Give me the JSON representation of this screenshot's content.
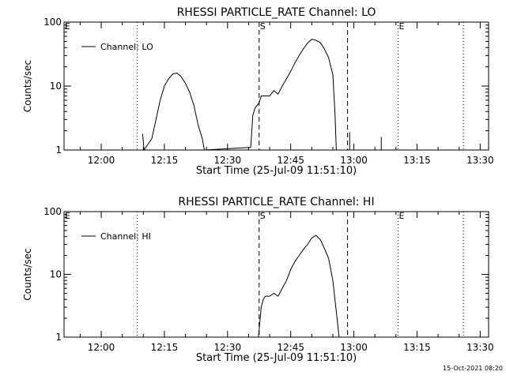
{
  "chart_data": [
    {
      "type": "line",
      "title": "RHESSI PARTICLE_RATE Channel: LO",
      "xlabel": "Start Time (25-Jul-09 11:51:10)",
      "ylabel": "Counts/sec",
      "yscale": "log",
      "xlim": [
        "11:51:10",
        "13:32:00"
      ],
      "ylim": [
        1,
        100
      ],
      "xticks": [
        "12:00",
        "12:15",
        "12:30",
        "12:45",
        "13:00",
        "13:15",
        "13:30"
      ],
      "yticks": [
        "1",
        "10",
        "100"
      ],
      "legend": {
        "placement": "top-left",
        "entries": [
          "Channel: LO"
        ]
      },
      "markers": [
        {
          "label": "E",
          "time": "11:51:10",
          "style": "none"
        },
        {
          "label": "",
          "time": "12:08:30",
          "style": "dotted"
        },
        {
          "label": "S",
          "time": "12:37:30",
          "style": "dashed"
        },
        {
          "label": "",
          "time": "12:58:30",
          "style": "dashed"
        },
        {
          "label": "E",
          "time": "13:10:30",
          "style": "dotted"
        },
        {
          "label": "",
          "time": "13:26:00",
          "style": "dotted"
        }
      ],
      "series": [
        {
          "name": "Channel: LO",
          "x": [
            "12:09:50",
            "12:10:10",
            "12:12:00",
            "12:13:00",
            "12:14:00",
            "12:15:00",
            "12:16:00",
            "12:17:00",
            "12:18:00",
            "12:19:00",
            "12:20:00",
            "12:21:00",
            "12:22:00",
            "12:23:00",
            "12:24:00",
            "12:24:30",
            "12:35:30",
            "12:36:00",
            "12:36:30",
            "12:37:00",
            "12:37:30",
            "12:38:00",
            "12:39:00",
            "12:40:00",
            "12:41:00",
            "12:42:00",
            "12:43:00",
            "12:44:00",
            "12:45:00",
            "12:46:00",
            "12:47:00",
            "12:48:00",
            "12:49:00",
            "12:50:00",
            "12:51:00",
            "12:52:00",
            "12:53:00",
            "12:54:00",
            "12:55:00",
            "12:55:30",
            "12:55:50"
          ],
          "y": [
            1.8,
            1.0,
            1.5,
            3,
            6,
            10,
            13,
            15.5,
            16,
            14,
            11,
            8,
            5,
            2.5,
            1.5,
            1.0,
            1.1,
            3.5,
            4.5,
            5,
            5.5,
            7,
            7,
            7,
            8.5,
            7.5,
            10,
            13,
            17,
            23,
            30,
            38,
            47,
            54,
            52,
            48,
            38,
            28,
            15,
            4,
            1.0
          ]
        }
      ],
      "spikes": [
        {
          "time": "12:59:00",
          "peak": 1.9
        },
        {
          "time": "13:06:30",
          "peak": 1.6
        }
      ]
    },
    {
      "type": "line",
      "title": "RHESSI PARTICLE_RATE Channel: HI",
      "xlabel": "Start Time (25-Jul-09 11:51:10)",
      "ylabel": "Counts/sec",
      "yscale": "log",
      "xlim": [
        "11:51:10",
        "13:32:00"
      ],
      "ylim": [
        1,
        100
      ],
      "xticks": [
        "12:00",
        "12:15",
        "12:30",
        "12:45",
        "13:00",
        "13:15",
        "13:30"
      ],
      "yticks": [
        "1",
        "10",
        "100"
      ],
      "legend": {
        "placement": "top-left",
        "entries": [
          "Channel: HI"
        ]
      },
      "markers": [
        {
          "label": "E",
          "time": "11:51:10",
          "style": "none"
        },
        {
          "label": "",
          "time": "12:08:30",
          "style": "dotted"
        },
        {
          "label": "S",
          "time": "12:37:30",
          "style": "dashed"
        },
        {
          "label": "",
          "time": "12:58:30",
          "style": "dashed"
        },
        {
          "label": "E",
          "time": "13:10:30",
          "style": "dotted"
        },
        {
          "label": "",
          "time": "13:26:00",
          "style": "dotted"
        }
      ],
      "series": [
        {
          "name": "Channel: HI",
          "x": [
            "12:37:20",
            "12:38:00",
            "12:38:30",
            "12:39:00",
            "12:40:00",
            "12:41:00",
            "12:42:00",
            "12:43:00",
            "12:44:00",
            "12:45:00",
            "12:46:00",
            "12:47:00",
            "12:48:00",
            "12:49:00",
            "12:50:00",
            "12:51:00",
            "12:52:00",
            "12:53:00",
            "12:54:00",
            "12:55:00",
            "12:56:00",
            "12:56:30"
          ],
          "y": [
            1.0,
            3,
            4,
            4.5,
            4.5,
            5,
            4.5,
            6,
            8,
            12,
            16,
            20,
            25,
            30,
            38,
            42,
            36,
            26,
            18,
            8,
            2,
            1.0
          ]
        }
      ]
    }
  ],
  "footer": {
    "timestamp": "15-Oct-2021 08:20"
  }
}
